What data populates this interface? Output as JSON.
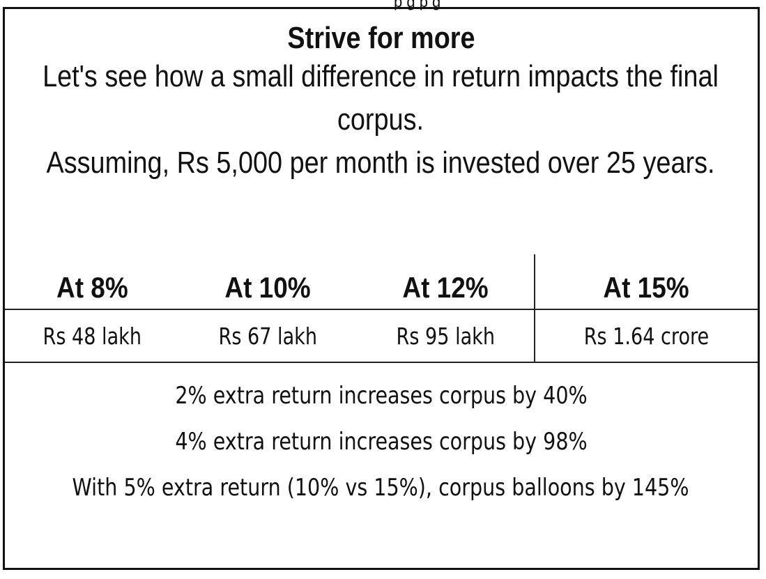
{
  "top_cut_text": "p      g            p                         g",
  "title": "Strive for more",
  "intro_1": "Let's see how a small difference in return impacts the final corpus.",
  "intro_2": "Assuming, Rs 5,000 per month is invested over 25 years.",
  "rates": [
    "At 8%",
    "At 10%",
    "At 12%",
    "At 15%"
  ],
  "values": [
    "Rs 48 lakh",
    "Rs 67 lakh",
    "Rs 95 lakh",
    "Rs 1.64 crore"
  ],
  "notes": [
    "2% extra return increases corpus by 40%",
    "4% extra return increases corpus by 98%",
    "With 5% extra return (10% vs 15%), corpus balloons by 145%"
  ]
}
